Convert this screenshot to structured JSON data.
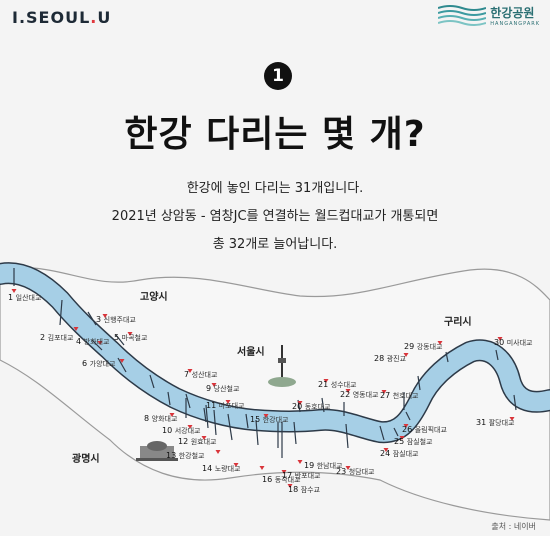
{
  "brand": {
    "seoul_logo_prefix": "I.",
    "seoul_logo_word": "SEOUL",
    "seoul_logo_dot": ".",
    "seoul_logo_suffix": "U",
    "park_logo": "한강공원",
    "park_logo_sub": "HANGANGPARK"
  },
  "badge": "1",
  "headline": "한강 다리는 몇 개?",
  "description": [
    "한강에 놓인 다리는 31개입니다.",
    "2021년 상암동 - 염창JC를 연결하는 월드컵대교가 개통되면",
    "총 32개로 늘어납니다."
  ],
  "cities": [
    "고양시",
    "서울시",
    "구리시",
    "광명시"
  ],
  "bridges": [
    {
      "num": "1",
      "name": "일산대교"
    },
    {
      "num": "2",
      "name": "김포대교"
    },
    {
      "num": "3",
      "name": "신행주대교"
    },
    {
      "num": "4",
      "name": "방화대교"
    },
    {
      "num": "5",
      "name": "마곡철교"
    },
    {
      "num": "6",
      "name": "가양대교"
    },
    {
      "num": "7",
      "name": "성산대교"
    },
    {
      "num": "8",
      "name": "양화대교"
    },
    {
      "num": "9",
      "name": "당산철교"
    },
    {
      "num": "10",
      "name": "서강대교"
    },
    {
      "num": "11",
      "name": "마포대교"
    },
    {
      "num": "12",
      "name": "원효대교"
    },
    {
      "num": "13",
      "name": "한강철교"
    },
    {
      "num": "14",
      "name": "노량대교"
    },
    {
      "num": "15",
      "name": "한강대교"
    },
    {
      "num": "16",
      "name": "동작대교"
    },
    {
      "num": "17",
      "name": "반포대교"
    },
    {
      "num": "18",
      "name": "잠수교"
    },
    {
      "num": "19",
      "name": "한남대교"
    },
    {
      "num": "20",
      "name": "동호대교"
    },
    {
      "num": "21",
      "name": "성수대교"
    },
    {
      "num": "22",
      "name": "영동대교"
    },
    {
      "num": "23",
      "name": "청담대교"
    },
    {
      "num": "24",
      "name": "잠실대교"
    },
    {
      "num": "25",
      "name": "잠실철교"
    },
    {
      "num": "26",
      "name": "올림픽대교"
    },
    {
      "num": "27",
      "name": "천호대교"
    },
    {
      "num": "28",
      "name": "광진교"
    },
    {
      "num": "29",
      "name": "강동대교"
    },
    {
      "num": "30",
      "name": "미사대교"
    },
    {
      "num": "31",
      "name": "팔당대교"
    }
  ],
  "source": "출처 : 네이버",
  "colors": {
    "river": "#a6cfe6",
    "river_outline": "#2d3a48",
    "marker": "#d9343a"
  }
}
